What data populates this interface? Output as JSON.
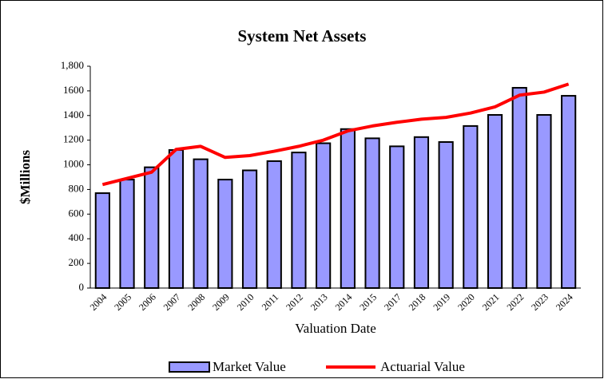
{
  "chart_data": {
    "type": "bar",
    "title": "System Net Assets",
    "y_label": "$Millions",
    "x_label": "Valuation Date",
    "categories": [
      "2004",
      "2005",
      "2006",
      "2007",
      "2008",
      "2009",
      "2010",
      "2011",
      "2012",
      "2013",
      "2014",
      "2015",
      "2017",
      "2018",
      "2019",
      "2020",
      "2021",
      "2022",
      "2023",
      "2024"
    ],
    "series": [
      {
        "name": "Market Value",
        "type": "bar",
        "color": "#9999ff",
        "values": [
          770,
          880,
          980,
          1120,
          1045,
          880,
          955,
          1030,
          1100,
          1175,
          1290,
          1215,
          1150,
          1225,
          1185,
          1315,
          1405,
          1625,
          1405,
          1560
        ]
      },
      {
        "name": "Actuarial Value",
        "type": "line",
        "color": "#ff0000",
        "values": [
          840,
          890,
          940,
          1125,
          1150,
          1060,
          1075,
          1110,
          1150,
          1200,
          1275,
          1315,
          1345,
          1370,
          1385,
          1420,
          1470,
          1565,
          1590,
          1655
        ]
      }
    ],
    "ylim": [
      0,
      1800
    ],
    "yticks": [
      0,
      200,
      400,
      600,
      800,
      1000,
      1200,
      1400,
      1600,
      {
        "value": 1800,
        "label": "1,800"
      }
    ],
    "grid": false
  }
}
